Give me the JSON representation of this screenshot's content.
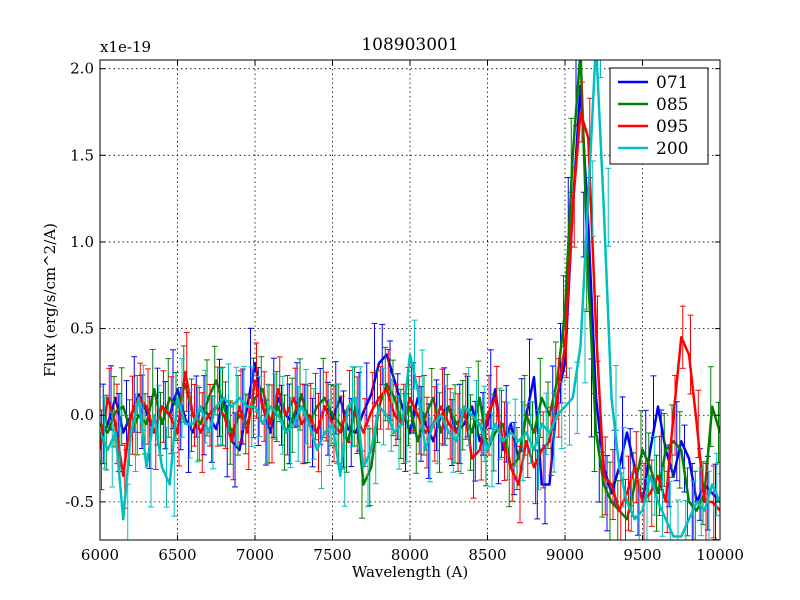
{
  "chart_data": {
    "type": "line",
    "title": "108903001",
    "xlabel": "Wavelength (A)",
    "ylabel": "Flux (erg/s/cm^2/A)",
    "y_scale_label": "x1e-19",
    "xlim": [
      6000,
      10000
    ],
    "ylim": [
      -0.72,
      2.05
    ],
    "xticks": [
      6000,
      6500,
      7000,
      7500,
      8000,
      8500,
      9000,
      9500,
      10000
    ],
    "xtick_labels": [
      "6000",
      "6500",
      "7000",
      "7500",
      "8000",
      "8500",
      "9000",
      "9500",
      "10000"
    ],
    "yticks": [
      -0.5,
      0.0,
      0.5,
      1.0,
      1.5,
      2.0
    ],
    "ytick_labels": [
      "-0.5",
      "0.0",
      "0.5",
      "1.0",
      "1.5",
      "2.0"
    ],
    "grid": true,
    "legend_position": "top-right",
    "x": [
      6000,
      6050,
      6100,
      6150,
      6200,
      6250,
      6300,
      6350,
      6400,
      6450,
      6500,
      6550,
      6600,
      6650,
      6700,
      6750,
      6800,
      6850,
      6900,
      6950,
      7000,
      7050,
      7100,
      7150,
      7200,
      7250,
      7300,
      7350,
      7400,
      7450,
      7500,
      7550,
      7600,
      7650,
      7700,
      7750,
      7800,
      7850,
      7900,
      7950,
      8000,
      8050,
      8100,
      8150,
      8200,
      8250,
      8300,
      8350,
      8400,
      8450,
      8500,
      8550,
      8600,
      8650,
      8700,
      8750,
      8800,
      8850,
      8900,
      8950,
      9000,
      9050,
      9100,
      9150,
      9200,
      9250,
      9300,
      9350,
      9400,
      9450,
      9500,
      9550,
      9600,
      9650,
      9700,
      9750,
      9800,
      9850,
      9900,
      9950,
      10000
    ],
    "series": [
      {
        "name": "071",
        "color": "#0000ff",
        "values": [
          -0.15,
          -0.05,
          0.1,
          -0.1,
          0.0,
          0.12,
          0.02,
          -0.1,
          0.05,
          0.0,
          0.15,
          -0.02,
          -0.1,
          0.05,
          0.0,
          -0.08,
          0.1,
          -0.15,
          -0.2,
          0.05,
          0.3,
          0.05,
          -0.1,
          0.1,
          0.0,
          -0.05,
          0.12,
          -0.05,
          -0.1,
          0.05,
          -0.02,
          0.1,
          -0.08,
          -0.1,
          0.02,
          0.12,
          0.3,
          0.35,
          0.2,
          0.05,
          -0.1,
          0.1,
          -0.05,
          -0.15,
          0.0,
          0.05,
          -0.1,
          -0.05,
          0.05,
          -0.15,
          -0.05,
          0.15,
          -0.2,
          -0.05,
          -0.25,
          0.0,
          0.22,
          -0.4,
          -0.4,
          0.1,
          0.3,
          1.2,
          1.9,
          1.1,
          0.1,
          -0.3,
          -0.45,
          -0.3,
          -0.1,
          -0.3,
          -0.5,
          -0.2,
          0.05,
          -0.2,
          -0.35,
          -0.15,
          -0.25,
          -0.5,
          -0.4,
          -0.45,
          -0.5
        ]
      },
      {
        "name": "085",
        "color": "#008000",
        "values": [
          -0.05,
          -0.1,
          0.02,
          0.05,
          -0.1,
          0.0,
          -0.05,
          0.15,
          -0.05,
          0.1,
          0.05,
          0.18,
          0.0,
          -0.05,
          0.1,
          0.2,
          0.05,
          -0.1,
          0.0,
          -0.05,
          0.1,
          0.15,
          -0.05,
          0.05,
          -0.1,
          0.0,
          0.12,
          -0.05,
          0.05,
          0.1,
          0.0,
          -0.05,
          -0.15,
          0.05,
          -0.4,
          -0.3,
          0.05,
          0.18,
          0.1,
          -0.05,
          0.05,
          -0.15,
          0.0,
          0.1,
          -0.1,
          0.05,
          -0.05,
          0.0,
          -0.1,
          0.1,
          -0.2,
          -0.1,
          -0.05,
          -0.3,
          -0.25,
          0.0,
          -0.1,
          0.1,
          0.0,
          0.2,
          0.6,
          1.5,
          2.1,
          0.8,
          -0.1,
          -0.4,
          -0.5,
          -0.55,
          -0.6,
          -0.4,
          -0.2,
          -0.3,
          -0.45,
          -0.2,
          -0.15,
          -0.2,
          -0.5,
          -0.55,
          -0.45,
          0.05,
          -0.1
        ]
      },
      {
        "name": "095",
        "color": "#ff0000",
        "values": [
          -0.2,
          0.1,
          -0.05,
          -0.35,
          0.0,
          0.1,
          0.05,
          -0.1,
          0.05,
          0.0,
          -0.1,
          0.25,
          0.0,
          -0.1,
          0.0,
          0.05,
          0.0,
          -0.15,
          0.05,
          -0.1,
          0.2,
          0.05,
          -0.05,
          0.15,
          0.0,
          0.1,
          -0.05,
          0.0,
          -0.1,
          0.05,
          -0.05,
          -0.1,
          0.05,
          0.0,
          -0.1,
          0.02,
          0.1,
          0.15,
          0.0,
          -0.05,
          0.1,
          0.0,
          -0.1,
          -0.05,
          0.05,
          -0.05,
          -0.1,
          0.05,
          -0.25,
          -0.2,
          0.0,
          0.1,
          -0.15,
          -0.3,
          -0.4,
          -0.15,
          -0.3,
          -0.2,
          -0.15,
          0.1,
          0.4,
          1.2,
          1.75,
          1.6,
          0.5,
          -0.35,
          -0.4,
          -0.55,
          -0.45,
          -0.3,
          -0.5,
          -0.45,
          -0.35,
          -0.5,
          0.0,
          0.45,
          0.35,
          -0.05,
          -0.5,
          -0.5,
          -0.55
        ]
      },
      {
        "name": "200",
        "color": "#00bfbf",
        "values": [
          -0.1,
          -0.2,
          -0.1,
          -0.6,
          -0.1,
          0.1,
          -0.3,
          0.0,
          -0.3,
          -0.4,
          0.1,
          -0.05,
          -0.05,
          0.05,
          -0.1,
          0.05,
          0.1,
          0.05,
          0.1,
          0.05,
          0.05,
          -0.05,
          0.05,
          0.0,
          -0.1,
          -0.05,
          0.05,
          -0.05,
          -0.2,
          -0.1,
          -0.05,
          -0.35,
          0.05,
          0.1,
          -0.3,
          -0.2,
          0.05,
          0.0,
          -0.1,
          -0.05,
          0.35,
          0.15,
          -0.2,
          -0.05,
          0.0,
          -0.1,
          -0.15,
          0.05,
          0.0,
          -0.05,
          -0.2,
          -0.05,
          -0.15,
          -0.1,
          -0.15,
          -0.1,
          -0.2,
          -0.05,
          -0.1,
          0.0,
          0.05,
          0.1,
          0.4,
          1.25,
          2.15,
          1.2,
          0.1,
          -0.3,
          -0.5,
          -0.6,
          -0.55,
          -0.35,
          -0.5,
          -0.6,
          -0.7,
          -0.7,
          -0.6,
          -0.5,
          -0.55,
          -0.4,
          -0.5
        ]
      }
    ]
  }
}
